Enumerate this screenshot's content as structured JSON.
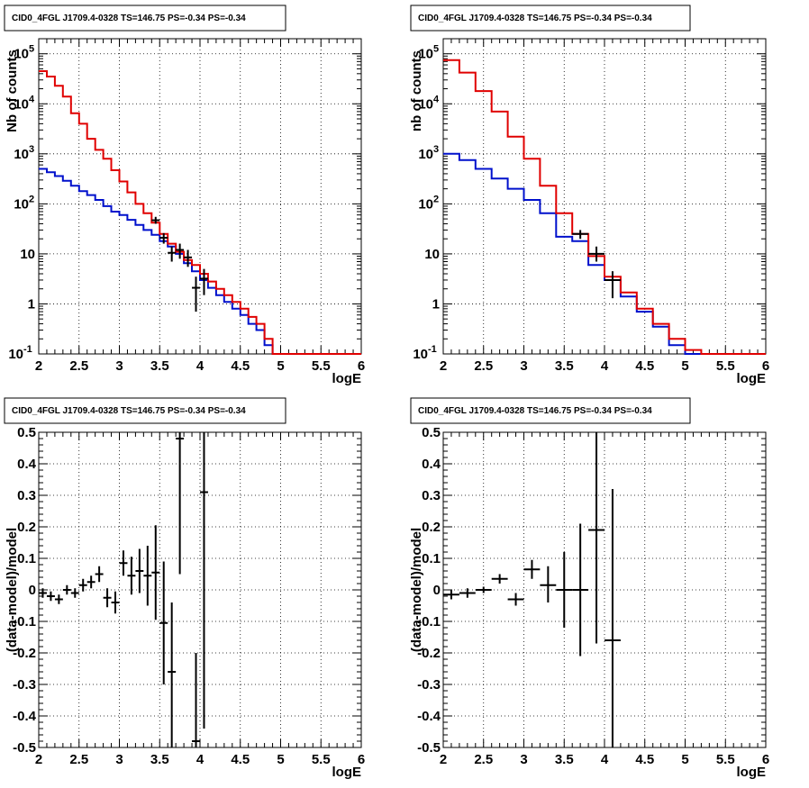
{
  "colors": {
    "data": "#000000",
    "model_total": "#e00000",
    "model_bkg": "#0010cc",
    "grid": "#000000"
  },
  "chart_data": [
    {
      "type": "histogram",
      "title": "CID0_4FGL J1709.4-0328 TS=146.75 PS=-0.34 PS=-0.34",
      "xlabel": "logE",
      "ylabel": "Nb of counts",
      "xlim": [
        2,
        6
      ],
      "ylim": [
        0.1,
        200000
      ],
      "yscale": "log",
      "grid": true,
      "xticks": [
        "2",
        "2.5",
        "3",
        "3.5",
        "4",
        "4.5",
        "5",
        "5.5",
        "6"
      ],
      "yticks": [
        {
          "v": 0.1,
          "label": "10",
          "sup": "-1"
        },
        {
          "v": 1,
          "label": "1",
          "sup": ""
        },
        {
          "v": 10,
          "label": "10",
          "sup": ""
        },
        {
          "v": 100,
          "label": "10",
          "sup": "2"
        },
        {
          "v": 1000,
          "label": "10",
          "sup": "3"
        },
        {
          "v": 10000,
          "label": "10",
          "sup": "4"
        },
        {
          "v": 100000,
          "label": "10",
          "sup": "5"
        }
      ],
      "bin_edges": [
        2.0,
        2.1,
        2.2,
        2.3,
        2.4,
        2.5,
        2.6,
        2.7,
        2.8,
        2.9,
        3.0,
        3.1,
        3.2,
        3.3,
        3.4,
        3.5,
        3.6,
        3.7,
        3.8,
        3.9,
        4.0,
        4.1,
        4.2,
        4.3,
        4.4,
        4.5,
        4.6,
        4.7,
        4.8,
        4.9,
        5.0,
        5.1,
        5.2,
        5.3,
        5.4,
        5.5,
        5.6,
        5.7,
        5.8,
        5.9,
        6.0
      ],
      "series": [
        {
          "name": "",
          "role": "model_bkg",
          "values": [
            500,
            430,
            360,
            290,
            230,
            180,
            150,
            120,
            90,
            70,
            60,
            48,
            38,
            30,
            24,
            18,
            14,
            10,
            6.5,
            4.5,
            3,
            2.1,
            1.5,
            1.1,
            0.8,
            0.6,
            0.4,
            0.3,
            0.15,
            0.1,
            0.1,
            0.1,
            0.1,
            0.1,
            0.1,
            0.1,
            0.1,
            0.1,
            0.1,
            0.1
          ]
        },
        {
          "name": "",
          "role": "model_total",
          "values": [
            45000,
            35000,
            23000,
            14000,
            6500,
            4000,
            2000,
            1200,
            800,
            470,
            280,
            170,
            100,
            65,
            42,
            25,
            16,
            11,
            7.5,
            6,
            4,
            2.8,
            2,
            1.5,
            1.1,
            0.8,
            0.55,
            0.4,
            0.2,
            0.1,
            0.1,
            0.1,
            0.1,
            0.1,
            0.1,
            0.1,
            0.1,
            0.1,
            0.1,
            0.1
          ]
        }
      ],
      "points": [
        {
          "x": 3.45,
          "y": 47,
          "xerr": 0.05,
          "ylo": 40,
          "yhi": 55
        },
        {
          "x": 3.55,
          "y": 21,
          "xerr": 0.05,
          "ylo": 16,
          "yhi": 26
        },
        {
          "x": 3.65,
          "y": 10.5,
          "xerr": 0.05,
          "ylo": 7,
          "yhi": 14
        },
        {
          "x": 3.75,
          "y": 12,
          "xerr": 0.05,
          "ylo": 8,
          "yhi": 16
        },
        {
          "x": 3.85,
          "y": 8.5,
          "xerr": 0.05,
          "ylo": 5.5,
          "yhi": 12
        },
        {
          "x": 3.95,
          "y": 2.1,
          "xerr": 0.05,
          "ylo": 0.7,
          "yhi": 3.5
        },
        {
          "x": 4.05,
          "y": 3.2,
          "xerr": 0.05,
          "ylo": 1.5,
          "yhi": 5
        }
      ]
    },
    {
      "type": "histogram",
      "title": "CID0_4FGL J1709.4-0328 TS=146.75 PS=-0.34 PS=-0.34",
      "xlabel": "logE",
      "ylabel": "nb of counts",
      "xlim": [
        2,
        6
      ],
      "ylim": [
        0.1,
        200000
      ],
      "yscale": "log",
      "grid": true,
      "xticks": [
        "2",
        "2.5",
        "3",
        "3.5",
        "4",
        "4.5",
        "5",
        "5.5",
        "6"
      ],
      "yticks": [
        {
          "v": 0.1,
          "label": "10",
          "sup": "-1"
        },
        {
          "v": 1,
          "label": "1",
          "sup": ""
        },
        {
          "v": 10,
          "label": "10",
          "sup": ""
        },
        {
          "v": 100,
          "label": "10",
          "sup": "2"
        },
        {
          "v": 1000,
          "label": "10",
          "sup": "3"
        },
        {
          "v": 10000,
          "label": "10",
          "sup": "4"
        },
        {
          "v": 100000,
          "label": "10",
          "sup": "5"
        }
      ],
      "bin_edges": [
        2.0,
        2.2,
        2.4,
        2.6,
        2.8,
        3.0,
        3.2,
        3.4,
        3.6,
        3.8,
        4.0,
        4.2,
        4.4,
        4.6,
        4.8,
        5.0,
        5.2,
        5.4,
        5.6,
        5.8,
        6.0
      ],
      "series": [
        {
          "name": "",
          "role": "model_bkg",
          "values": [
            1000,
            750,
            500,
            320,
            200,
            120,
            65,
            22,
            18,
            6,
            3,
            1.4,
            0.7,
            0.35,
            0.15,
            0.1,
            0.1,
            0.1,
            0.1,
            0.1
          ]
        },
        {
          "name": "",
          "role": "model_total",
          "values": [
            75000,
            42000,
            18000,
            7000,
            2200,
            800,
            230,
            65,
            25,
            9,
            3.5,
            1.7,
            0.8,
            0.4,
            0.2,
            0.12,
            0.1,
            0.1,
            0.1,
            0.1
          ]
        }
      ],
      "points": [
        {
          "x": 3.7,
          "y": 25,
          "xerr": 0.1,
          "ylo": 20,
          "yhi": 30
        },
        {
          "x": 3.9,
          "y": 10,
          "xerr": 0.1,
          "ylo": 7,
          "yhi": 14
        },
        {
          "x": 4.1,
          "y": 3,
          "xerr": 0.1,
          "ylo": 1.3,
          "yhi": 4.5
        }
      ]
    },
    {
      "type": "scatter",
      "title": "CID0_4FGL J1709.4-0328 TS=146.75 PS=-0.34 PS=-0.34",
      "xlabel": "logE",
      "ylabel": "(data-model)/model",
      "xlim": [
        2,
        6
      ],
      "ylim": [
        -0.5,
        0.5
      ],
      "yscale": "linear",
      "grid": true,
      "xticks": [
        "2",
        "2.5",
        "3",
        "3.5",
        "4",
        "4.5",
        "5",
        "5.5",
        "6"
      ],
      "yticks_linear": [
        "-0.5",
        "-0.4",
        "-0.3",
        "-0.2",
        "-0.1",
        "0",
        "0.1",
        "0.2",
        "0.3",
        "0.4",
        "0.5"
      ],
      "points": [
        {
          "x": 2.05,
          "y": -0.01,
          "xerr": 0.05,
          "ylo": -0.025,
          "yhi": 0.005
        },
        {
          "x": 2.15,
          "y": -0.02,
          "xerr": 0.05,
          "ylo": -0.035,
          "yhi": -0.005
        },
        {
          "x": 2.25,
          "y": -0.03,
          "xerr": 0.05,
          "ylo": -0.045,
          "yhi": -0.015
        },
        {
          "x": 2.35,
          "y": 0.0,
          "xerr": 0.05,
          "ylo": -0.015,
          "yhi": 0.015
        },
        {
          "x": 2.45,
          "y": -0.01,
          "xerr": 0.05,
          "ylo": -0.025,
          "yhi": 0.005
        },
        {
          "x": 2.55,
          "y": 0.015,
          "xerr": 0.05,
          "ylo": -0.005,
          "yhi": 0.035
        },
        {
          "x": 2.65,
          "y": 0.025,
          "xerr": 0.05,
          "ylo": 0.005,
          "yhi": 0.045
        },
        {
          "x": 2.75,
          "y": 0.05,
          "xerr": 0.05,
          "ylo": 0.025,
          "yhi": 0.075
        },
        {
          "x": 2.85,
          "y": -0.025,
          "xerr": 0.05,
          "ylo": -0.055,
          "yhi": 0.005
        },
        {
          "x": 2.95,
          "y": -0.04,
          "xerr": 0.05,
          "ylo": -0.075,
          "yhi": -0.005
        },
        {
          "x": 3.05,
          "y": 0.085,
          "xerr": 0.05,
          "ylo": 0.045,
          "yhi": 0.125
        },
        {
          "x": 3.15,
          "y": 0.045,
          "xerr": 0.05,
          "ylo": -0.015,
          "yhi": 0.105
        },
        {
          "x": 3.25,
          "y": 0.06,
          "xerr": 0.05,
          "ylo": -0.01,
          "yhi": 0.13
        },
        {
          "x": 3.35,
          "y": 0.045,
          "xerr": 0.05,
          "ylo": -0.05,
          "yhi": 0.14
        },
        {
          "x": 3.45,
          "y": 0.055,
          "xerr": 0.05,
          "ylo": -0.095,
          "yhi": 0.205
        },
        {
          "x": 3.55,
          "y": -0.105,
          "xerr": 0.05,
          "ylo": -0.3,
          "yhi": 0.09
        },
        {
          "x": 3.65,
          "y": -0.26,
          "xerr": 0.05,
          "ylo": -0.5,
          "yhi": -0.04
        },
        {
          "x": 3.75,
          "y": 0.48,
          "xerr": 0.05,
          "ylo": 0.05,
          "yhi": 0.5
        },
        {
          "x": 3.95,
          "y": -0.48,
          "xerr": 0.05,
          "ylo": -0.5,
          "yhi": -0.2
        },
        {
          "x": 4.05,
          "y": 0.31,
          "xerr": 0.05,
          "ylo": -0.44,
          "yhi": 0.5
        }
      ]
    },
    {
      "type": "scatter",
      "title": "CID0_4FGL J1709.4-0328 TS=146.75 PS=-0.34 PS=-0.34",
      "xlabel": "logE",
      "ylabel": "(data-model)/model",
      "xlim": [
        2,
        6
      ],
      "ylim": [
        -0.5,
        0.5
      ],
      "yscale": "linear",
      "grid": true,
      "xticks": [
        "2",
        "2.5",
        "3",
        "3.5",
        "4",
        "4.5",
        "5",
        "5.5",
        "6"
      ],
      "yticks_linear": [
        "-0.5",
        "-0.4",
        "-0.3",
        "-0.2",
        "-0.1",
        "0",
        "0.1",
        "0.2",
        "0.3",
        "0.4",
        "0.5"
      ],
      "points": [
        {
          "x": 2.1,
          "y": -0.015,
          "xerr": 0.1,
          "ylo": -0.03,
          "yhi": 0.0
        },
        {
          "x": 2.3,
          "y": -0.01,
          "xerr": 0.1,
          "ylo": -0.025,
          "yhi": 0.005
        },
        {
          "x": 2.5,
          "y": 0.0,
          "xerr": 0.1,
          "ylo": -0.01,
          "yhi": 0.01
        },
        {
          "x": 2.7,
          "y": 0.035,
          "xerr": 0.1,
          "ylo": 0.02,
          "yhi": 0.05
        },
        {
          "x": 2.9,
          "y": -0.03,
          "xerr": 0.1,
          "ylo": -0.05,
          "yhi": -0.01
        },
        {
          "x": 3.1,
          "y": 0.065,
          "xerr": 0.1,
          "ylo": 0.035,
          "yhi": 0.095
        },
        {
          "x": 3.3,
          "y": 0.015,
          "xerr": 0.1,
          "ylo": -0.04,
          "yhi": 0.075
        },
        {
          "x": 3.5,
          "y": 0.0,
          "xerr": 0.1,
          "ylo": -0.12,
          "yhi": 0.12
        },
        {
          "x": 3.7,
          "y": 0.0,
          "xerr": 0.1,
          "ylo": -0.21,
          "yhi": 0.21
        },
        {
          "x": 3.9,
          "y": 0.19,
          "xerr": 0.1,
          "ylo": -0.17,
          "yhi": 0.5
        },
        {
          "x": 4.1,
          "y": -0.16,
          "xerr": 0.1,
          "ylo": -0.5,
          "yhi": 0.32
        }
      ]
    }
  ]
}
